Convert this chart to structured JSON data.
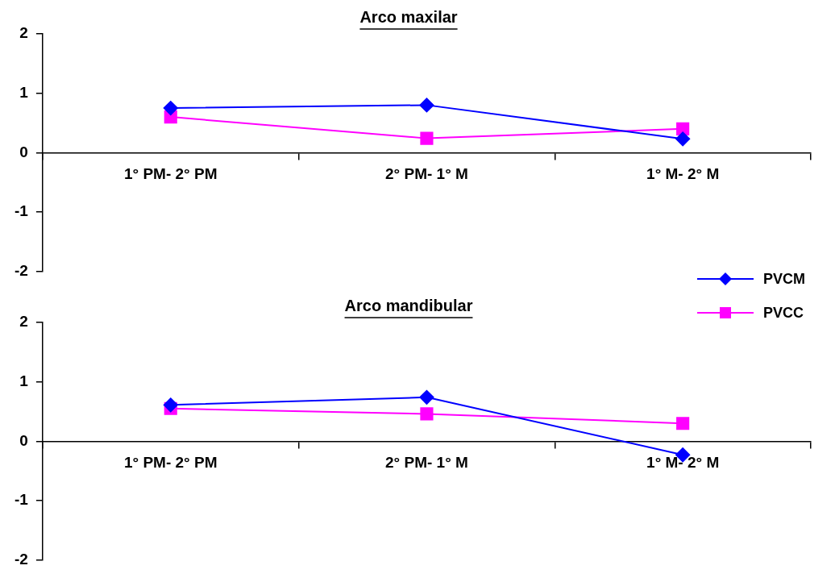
{
  "chart_data": [
    {
      "type": "line",
      "title": "Arco maxilar",
      "categories": [
        "1° PM- 2° PM",
        "2° PM- 1° M",
        "1° M- 2° M"
      ],
      "ylim": [
        -2,
        2
      ],
      "yticks": [
        -2,
        -1,
        0,
        1,
        2
      ],
      "grid": false,
      "legend": "right",
      "series": [
        {
          "name": "PVCM",
          "color": "#0000ff",
          "marker": "diamond",
          "values": [
            0.75,
            0.8,
            0.23
          ]
        },
        {
          "name": "PVCC",
          "color": "#ff00ff",
          "marker": "square",
          "values": [
            0.6,
            0.24,
            0.4
          ]
        }
      ]
    },
    {
      "type": "line",
      "title": "Arco mandibular",
      "categories": [
        "1° PM- 2° PM",
        "2° PM- 1° M",
        "1° M- 2° M"
      ],
      "ylim": [
        -2,
        2
      ],
      "yticks": [
        -2,
        -1,
        0,
        1,
        2
      ],
      "grid": false,
      "series": [
        {
          "color": "#0000ff",
          "marker": "diamond",
          "values": [
            0.61,
            0.74,
            -0.23
          ]
        },
        {
          "color": "#ff00ff",
          "marker": "square",
          "values": [
            0.55,
            0.46,
            0.3
          ]
        }
      ]
    }
  ]
}
